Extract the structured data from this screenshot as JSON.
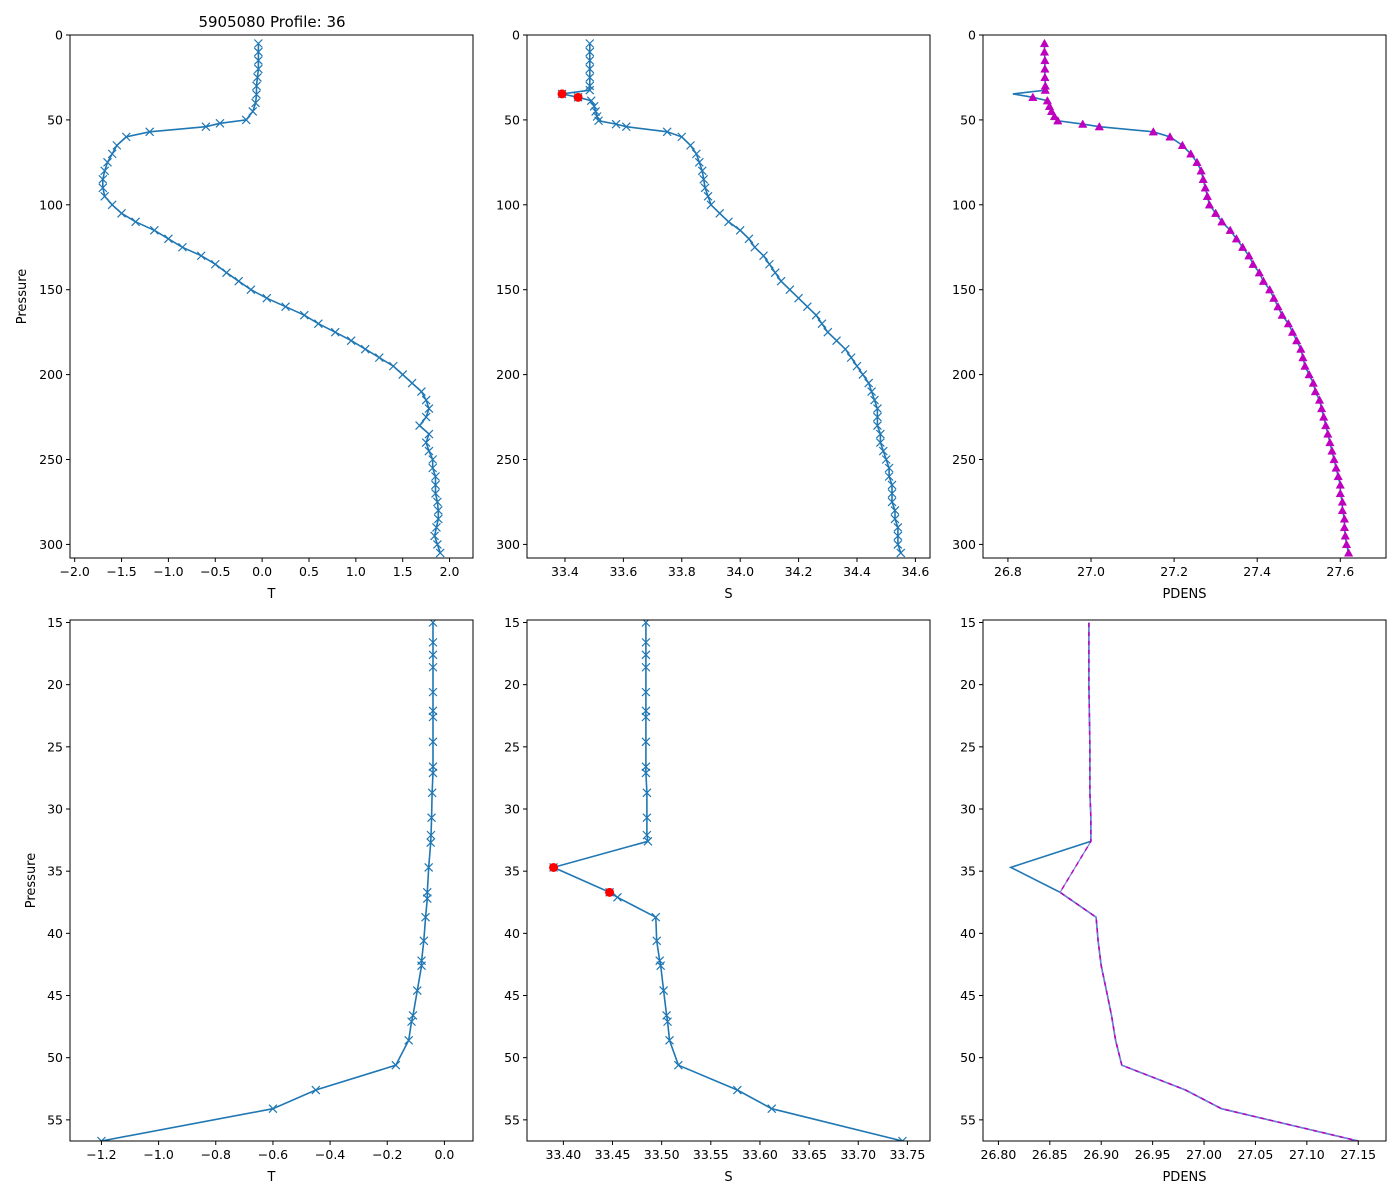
{
  "figure": {
    "title": "5905080 Profile: 36",
    "colors": {
      "line": "#1f77b4",
      "flag": "#ff0000",
      "pdens": "#bf00bf",
      "pdens_dash": "#7b7bd8"
    }
  },
  "chart_data": [
    {
      "type": "line",
      "id": "top-t",
      "title": "5905080 Profile: 36",
      "xlabel": "T",
      "ylabel": "Pressure",
      "marker": "x",
      "xlim": [
        -2.05,
        2.25
      ],
      "ylim": [
        308,
        0
      ],
      "xticks": [
        -2.0,
        -1.5,
        -1.0,
        -0.5,
        0.0,
        0.5,
        1.0,
        1.5,
        2.0
      ],
      "yticks": [
        0,
        50,
        100,
        150,
        200,
        250,
        300
      ],
      "xtick_labels": [
        "−2.0",
        "−1.5",
        "−1.0",
        "−0.5",
        "0.0",
        "0.5",
        "1.0",
        "1.5",
        "2.0"
      ],
      "ytick_labels": [
        "0",
        "50",
        "100",
        "150",
        "200",
        "250",
        "300"
      ],
      "series": [
        {
          "name": "T",
          "pressure": [
            5,
            10,
            15,
            20,
            25,
            30,
            35,
            40,
            45,
            50,
            52,
            54,
            57,
            60,
            65,
            70,
            75,
            80,
            85,
            90,
            95,
            100,
            105,
            110,
            115,
            120,
            125,
            130,
            135,
            140,
            145,
            150,
            155,
            160,
            165,
            170,
            175,
            180,
            185,
            190,
            195,
            200,
            205,
            210,
            215,
            220,
            225,
            230,
            235,
            240,
            245,
            250,
            255,
            260,
            265,
            270,
            275,
            280,
            285,
            290,
            295,
            300,
            305
          ],
          "values": [
            -0.04,
            -0.04,
            -0.04,
            -0.04,
            -0.05,
            -0.06,
            -0.06,
            -0.07,
            -0.1,
            -0.17,
            -0.45,
            -0.6,
            -1.2,
            -1.45,
            -1.55,
            -1.6,
            -1.65,
            -1.68,
            -1.7,
            -1.7,
            -1.68,
            -1.6,
            -1.5,
            -1.35,
            -1.15,
            -1.0,
            -0.85,
            -0.65,
            -0.5,
            -0.38,
            -0.25,
            -0.12,
            0.05,
            0.25,
            0.45,
            0.6,
            0.78,
            0.95,
            1.1,
            1.25,
            1.4,
            1.5,
            1.6,
            1.7,
            1.75,
            1.78,
            1.75,
            1.68,
            1.78,
            1.75,
            1.78,
            1.82,
            1.82,
            1.85,
            1.85,
            1.85,
            1.87,
            1.88,
            1.88,
            1.86,
            1.84,
            1.87,
            1.9
          ]
        }
      ],
      "flags": []
    },
    {
      "type": "line",
      "id": "top-s",
      "xlabel": "S",
      "ylabel": "",
      "marker": "x",
      "xlim": [
        33.27,
        34.65
      ],
      "ylim": [
        308,
        0
      ],
      "xticks": [
        33.4,
        33.6,
        33.8,
        34.0,
        34.2,
        34.4,
        34.6
      ],
      "yticks": [
        0,
        50,
        100,
        150,
        200,
        250,
        300
      ],
      "xtick_labels": [
        "33.4",
        "33.6",
        "33.8",
        "34.0",
        "34.2",
        "34.4",
        "34.6"
      ],
      "ytick_labels": [
        "0",
        "50",
        "100",
        "150",
        "200",
        "250",
        "300"
      ],
      "series": [
        {
          "name": "S",
          "pressure": [
            5,
            10,
            15,
            20,
            25,
            30,
            32.5,
            34.7,
            36.7,
            38.7,
            42,
            45,
            48,
            50.5,
            52.5,
            54,
            57,
            60,
            65,
            70,
            75,
            80,
            85,
            90,
            95,
            100,
            105,
            110,
            115,
            120,
            125,
            130,
            135,
            140,
            145,
            150,
            155,
            160,
            165,
            170,
            175,
            180,
            185,
            190,
            195,
            200,
            205,
            210,
            215,
            220,
            225,
            230,
            235,
            240,
            245,
            250,
            255,
            260,
            265,
            270,
            275,
            280,
            285,
            290,
            295,
            300,
            305
          ],
          "values": [
            33.485,
            33.485,
            33.485,
            33.485,
            33.485,
            33.485,
            33.485,
            33.39,
            33.445,
            33.49,
            33.5,
            33.505,
            33.51,
            33.515,
            33.575,
            33.61,
            33.75,
            33.8,
            33.83,
            33.85,
            33.86,
            33.87,
            33.875,
            33.88,
            33.89,
            33.9,
            33.93,
            33.96,
            34.0,
            34.03,
            34.05,
            34.08,
            34.1,
            34.12,
            34.14,
            34.17,
            34.2,
            34.23,
            34.26,
            34.28,
            34.3,
            34.33,
            34.36,
            34.38,
            34.4,
            34.42,
            34.44,
            34.45,
            34.46,
            34.47,
            34.47,
            34.47,
            34.48,
            34.48,
            34.49,
            34.5,
            34.51,
            34.51,
            34.52,
            34.52,
            34.52,
            34.53,
            34.53,
            34.54,
            34.54,
            34.54,
            34.55
          ]
        }
      ],
      "flags": [
        {
          "pressure": 34.7,
          "value": 33.39
        },
        {
          "pressure": 36.7,
          "value": 33.445
        }
      ]
    },
    {
      "type": "line",
      "id": "top-pdens",
      "xlabel": "PDENS",
      "ylabel": "",
      "marker": "triangle",
      "xlim": [
        26.74,
        27.71
      ],
      "ylim": [
        308,
        0
      ],
      "xticks": [
        26.8,
        27.0,
        27.2,
        27.4,
        27.6
      ],
      "yticks": [
        0,
        50,
        100,
        150,
        200,
        250,
        300
      ],
      "xtick_labels": [
        "26.8",
        "27.0",
        "27.2",
        "27.4",
        "27.6"
      ],
      "ytick_labels": [
        "0",
        "50",
        "100",
        "150",
        "200",
        "250",
        "300"
      ],
      "series": [
        {
          "name": "PDENS",
          "pressure": [
            5,
            10,
            15,
            20,
            25,
            30,
            32.5,
            34.7,
            36.7,
            38.7,
            42,
            45,
            48,
            50.5,
            52.5,
            54,
            57,
            60,
            65,
            70,
            75,
            80,
            85,
            90,
            95,
            100,
            105,
            110,
            115,
            120,
            125,
            130,
            135,
            140,
            145,
            150,
            155,
            160,
            165,
            170,
            175,
            180,
            185,
            190,
            195,
            200,
            205,
            210,
            215,
            220,
            225,
            230,
            235,
            240,
            245,
            250,
            255,
            260,
            265,
            270,
            275,
            280,
            285,
            290,
            295,
            300,
            305
          ],
          "values": [
            26.888,
            26.888,
            26.889,
            26.889,
            26.889,
            26.89,
            26.89,
            26.812,
            26.86,
            26.895,
            26.9,
            26.905,
            26.912,
            26.92,
            26.98,
            27.02,
            27.15,
            27.19,
            27.22,
            27.24,
            27.255,
            27.265,
            27.27,
            27.275,
            27.28,
            27.285,
            27.3,
            27.315,
            27.335,
            27.35,
            27.365,
            27.38,
            27.39,
            27.405,
            27.415,
            27.43,
            27.44,
            27.45,
            27.46,
            27.475,
            27.485,
            27.495,
            27.505,
            27.51,
            27.515,
            27.525,
            27.535,
            27.54,
            27.55,
            27.555,
            27.56,
            27.565,
            27.57,
            27.575,
            27.58,
            27.585,
            27.59,
            27.595,
            27.6,
            27.6,
            27.605,
            27.605,
            27.61,
            27.61,
            27.612,
            27.615,
            27.62
          ]
        }
      ],
      "flags": []
    },
    {
      "type": "line",
      "id": "bottom-t",
      "xlabel": "T",
      "ylabel": "Pressure",
      "marker": "x",
      "xlim": [
        -1.31,
        0.1
      ],
      "ylim": [
        56.7,
        14.8
      ],
      "xticks": [
        -1.2,
        -1.0,
        -0.8,
        -0.6,
        -0.4,
        -0.2,
        0.0
      ],
      "yticks": [
        15,
        20,
        25,
        30,
        35,
        40,
        45,
        50,
        55
      ],
      "xtick_labels": [
        "−1.2",
        "−1.0",
        "−0.8",
        "−0.6",
        "−0.4",
        "−0.2",
        "0.0"
      ],
      "ytick_labels": [
        "15",
        "20",
        "25",
        "30",
        "35",
        "40",
        "45",
        "50",
        "55"
      ],
      "series": [
        {
          "name": "T",
          "pressure": [
            15,
            16.6,
            17.6,
            18.6,
            20.6,
            22.1,
            22.6,
            24.6,
            26.6,
            27.1,
            28.7,
            30.7,
            32.1,
            32.7,
            34.7,
            36.7,
            37.2,
            38.7,
            40.6,
            42.2,
            42.6,
            44.6,
            46.6,
            47.1,
            48.6,
            50.6,
            52.6,
            54.1,
            56.7
          ],
          "values": [
            -0.04,
            -0.04,
            -0.04,
            -0.04,
            -0.04,
            -0.04,
            -0.04,
            -0.04,
            -0.04,
            -0.04,
            -0.043,
            -0.045,
            -0.047,
            -0.048,
            -0.055,
            -0.06,
            -0.06,
            -0.066,
            -0.072,
            -0.08,
            -0.08,
            -0.095,
            -0.11,
            -0.115,
            -0.125,
            -0.17,
            -0.45,
            -0.6,
            -1.2
          ]
        }
      ],
      "flags": []
    },
    {
      "type": "line",
      "id": "bottom-s",
      "xlabel": "S",
      "ylabel": "",
      "marker": "x",
      "xlim": [
        33.363,
        33.773
      ],
      "ylim": [
        56.7,
        14.8
      ],
      "xticks": [
        33.4,
        33.45,
        33.5,
        33.55,
        33.6,
        33.65,
        33.7,
        33.75
      ],
      "yticks": [
        15,
        20,
        25,
        30,
        35,
        40,
        45,
        50,
        55
      ],
      "xtick_labels": [
        "33.40",
        "33.45",
        "33.50",
        "33.55",
        "33.60",
        "33.65",
        "33.70",
        "33.75"
      ],
      "ytick_labels": [
        "15",
        "20",
        "25",
        "30",
        "35",
        "40",
        "45",
        "50",
        "55"
      ],
      "series": [
        {
          "name": "S",
          "pressure": [
            15,
            16.6,
            17.6,
            18.6,
            20.6,
            22.1,
            22.6,
            24.6,
            26.6,
            27.1,
            28.7,
            30.7,
            32.1,
            32.6,
            34.7,
            36.7,
            37.1,
            38.7,
            40.6,
            42.2,
            42.6,
            44.6,
            46.6,
            47.1,
            48.6,
            50.6,
            52.6,
            54.1,
            56.7
          ],
          "values": [
            33.484,
            33.484,
            33.484,
            33.484,
            33.484,
            33.484,
            33.484,
            33.484,
            33.484,
            33.484,
            33.485,
            33.485,
            33.485,
            33.486,
            33.39,
            33.447,
            33.455,
            33.494,
            33.495,
            33.498,
            33.499,
            33.502,
            33.505,
            33.506,
            33.508,
            33.517,
            33.577,
            33.612,
            33.745
          ]
        }
      ],
      "flags": [
        {
          "pressure": 34.7,
          "value": 33.39
        },
        {
          "pressure": 36.7,
          "value": 33.447
        }
      ]
    },
    {
      "type": "line",
      "id": "bottom-pdens",
      "xlabel": "PDENS",
      "ylabel": "",
      "marker": "none",
      "xlim": [
        26.785,
        27.177
      ],
      "ylim": [
        56.7,
        14.8
      ],
      "xticks": [
        26.8,
        26.85,
        26.9,
        26.95,
        27.0,
        27.05,
        27.1,
        27.15
      ],
      "yticks": [
        15,
        20,
        25,
        30,
        35,
        40,
        45,
        50,
        55
      ],
      "xtick_labels": [
        "26.80",
        "26.85",
        "26.90",
        "26.95",
        "27.00",
        "27.05",
        "27.10",
        "27.15"
      ],
      "ytick_labels": [
        "15",
        "20",
        "25",
        "30",
        "35",
        "40",
        "45",
        "50",
        "55"
      ],
      "series": [
        {
          "name": "PDENS",
          "pressure": [
            15,
            20,
            25,
            28.7,
            30.7,
            32.6,
            34.7,
            36.7,
            38.7,
            40.6,
            42.6,
            44.6,
            46.6,
            48.6,
            50.6,
            52.6,
            54.1,
            56.7
          ],
          "values": [
            26.888,
            26.888,
            26.889,
            26.889,
            26.89,
            26.89,
            26.812,
            26.86,
            26.895,
            26.897,
            26.9,
            26.905,
            26.91,
            26.914,
            26.92,
            26.982,
            27.017,
            27.15
          ]
        }
      ],
      "flags": []
    }
  ]
}
